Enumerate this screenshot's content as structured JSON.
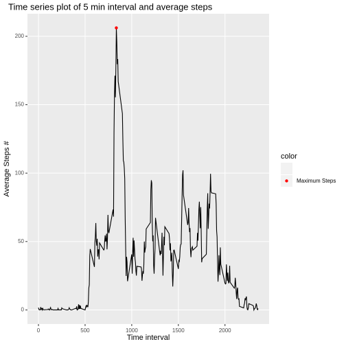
{
  "chart_data": {
    "type": "line",
    "title": "Time series plot of 5 min interval and average steps",
    "x_label": "Time interval",
    "y_label": "Average Steps #",
    "legend_title": "color",
    "grid": true,
    "xlim": [
      -118,
      2473
    ],
    "ylim": [
      -10.3,
      216.5
    ],
    "xticks": [
      0,
      500,
      1000,
      1500,
      2000
    ],
    "yticks": [
      0,
      50,
      100,
      150,
      200
    ],
    "x": [
      0,
      5,
      10,
      15,
      20,
      25,
      30,
      35,
      40,
      45,
      50,
      55,
      100,
      105,
      110,
      115,
      120,
      125,
      130,
      135,
      140,
      145,
      150,
      155,
      200,
      205,
      210,
      215,
      220,
      225,
      230,
      235,
      240,
      245,
      250,
      255,
      300,
      305,
      310,
      315,
      320,
      325,
      330,
      335,
      340,
      345,
      350,
      355,
      400,
      405,
      410,
      415,
      420,
      425,
      430,
      435,
      440,
      445,
      450,
      455,
      500,
      505,
      510,
      515,
      520,
      525,
      530,
      535,
      540,
      545,
      550,
      555,
      600,
      605,
      610,
      615,
      620,
      625,
      630,
      635,
      640,
      645,
      650,
      655,
      700,
      705,
      710,
      715,
      720,
      725,
      730,
      735,
      740,
      745,
      750,
      755,
      800,
      805,
      810,
      815,
      820,
      825,
      830,
      835,
      840,
      845,
      850,
      855,
      900,
      905,
      910,
      915,
      920,
      925,
      930,
      935,
      940,
      945,
      950,
      955,
      1000,
      1005,
      1010,
      1015,
      1020,
      1025,
      1030,
      1035,
      1040,
      1045,
      1050,
      1055,
      1100,
      1105,
      1110,
      1115,
      1120,
      1125,
      1130,
      1135,
      1140,
      1145,
      1150,
      1155,
      1200,
      1205,
      1210,
      1215,
      1220,
      1225,
      1230,
      1235,
      1240,
      1245,
      1250,
      1255,
      1300,
      1305,
      1310,
      1315,
      1320,
      1325,
      1330,
      1335,
      1340,
      1345,
      1350,
      1355,
      1400,
      1405,
      1410,
      1415,
      1420,
      1425,
      1430,
      1435,
      1440,
      1445,
      1450,
      1455,
      1500,
      1505,
      1510,
      1515,
      1520,
      1525,
      1530,
      1535,
      1540,
      1545,
      1550,
      1555,
      1600,
      1605,
      1610,
      1615,
      1620,
      1625,
      1630,
      1635,
      1640,
      1645,
      1650,
      1655,
      1700,
      1705,
      1710,
      1715,
      1720,
      1725,
      1730,
      1735,
      1740,
      1745,
      1750,
      1755,
      1800,
      1805,
      1810,
      1815,
      1820,
      1825,
      1830,
      1835,
      1840,
      1845,
      1850,
      1855,
      1900,
      1905,
      1910,
      1915,
      1920,
      1925,
      1930,
      1935,
      1940,
      1945,
      1950,
      1955,
      2000,
      2005,
      2010,
      2015,
      2020,
      2025,
      2030,
      2035,
      2040,
      2045,
      2050,
      2055,
      2100,
      2105,
      2110,
      2115,
      2120,
      2125,
      2130,
      2135,
      2140,
      2145,
      2150,
      2155,
      2200,
      2205,
      2210,
      2215,
      2220,
      2225,
      2230,
      2235,
      2240,
      2245,
      2250,
      2255,
      2300,
      2305,
      2310,
      2315,
      2320,
      2325,
      2330,
      2335,
      2340,
      2345,
      2350,
      2355
    ],
    "series": [
      {
        "color": "#000000",
        "values": [
          1.7,
          0.3,
          0.1,
          0.2,
          0.1,
          2.1,
          0.5,
          0.9,
          0,
          1.5,
          0.3,
          0.1,
          0.3,
          0.7,
          0.2,
          0.3,
          0,
          1.1,
          1.8,
          0.2,
          0.2,
          0.4,
          0.3,
          0,
          0,
          0,
          1.1,
          0,
          0,
          0.1,
          0,
          0.2,
          0,
          0,
          1.5,
          0.9,
          0,
          0,
          0,
          0,
          0.2,
          0.6,
          1.6,
          0.6,
          0.5,
          0.1,
          0,
          0,
          1.2,
          0.9,
          2.6,
          0,
          0.3,
          0.4,
          4.1,
          0.7,
          3.5,
          0.8,
          3.1,
          1.1,
          0,
          1.6,
          3,
          2.2,
          3.3,
          3,
          2.1,
          6.1,
          16,
          18.3,
          39.5,
          44.5,
          31.5,
          49.3,
          53.8,
          63.5,
          50,
          47,
          52,
          39,
          44,
          44,
          37,
          49,
          43.8,
          44.4,
          50.5,
          54.5,
          49.9,
          51,
          55.7,
          44.3,
          52.3,
          69.5,
          57.8,
          56.2,
          73.4,
          68.2,
          129.4,
          157.5,
          171.2,
          155.4,
          177.3,
          206.17,
          195.9,
          179.6,
          183.4,
          167,
          143.5,
          124,
          109.1,
          108.1,
          103.7,
          95.9,
          66.2,
          45.2,
          24.8,
          38.8,
          35,
          21,
          40.6,
          26.5,
          42.4,
          52.7,
          38.9,
          50.8,
          44.3,
          37.4,
          34.7,
          28.3,
          25.1,
          31.9,
          31.4,
          29.7,
          21.3,
          25.5,
          28.4,
          26.5,
          33.4,
          50,
          42,
          44.6,
          46,
          59.2,
          63.9,
          87.7,
          94.8,
          92.8,
          63.4,
          50.2,
          54.5,
          32.4,
          26.5,
          37.7,
          45,
          67.3,
          42.3,
          39.9,
          43.3,
          40.9,
          46.2,
          56.4,
          42.8,
          25.1,
          39.9,
          53.5,
          47.3,
          60.8,
          55.8,
          51.9,
          43.6,
          48.7,
          35.5,
          37.5,
          41.8,
          27.5,
          17.1,
          26.1,
          43.6,
          43.8,
          30,
          36.1,
          35.5,
          38.8,
          45.9,
          47.8,
          48.1,
          65.3,
          82.9,
          98.7,
          102.1,
          84,
          62.1,
          64.1,
          74.5,
          63.2,
          56.9,
          59.8,
          43.9,
          38.6,
          44.7,
          45.5,
          46.2,
          43.7,
          46.6,
          56.3,
          50.7,
          61.2,
          73.4,
          79.1,
          68.9,
          59.7,
          75.1,
          56.5,
          34.8,
          37.5,
          40.7,
          58,
          74.7,
          85.3,
          59.3,
          67.8,
          77.7,
          74.2,
          85.3,
          99.5,
          86.6,
          85.6,
          84.9,
          77.8,
          58,
          53.4,
          36.3,
          20.7,
          27.4,
          40,
          30.2,
          25.5,
          45.7,
          33.5,
          19.6,
          19,
          19.3,
          33.3,
          26.8,
          21.2,
          27.3,
          21.3,
          19.5,
          21.3,
          32.3,
          20.2,
          15.9,
          17.2,
          23.5,
          19.2,
          12.5,
          8,
          14.7,
          16.3,
          8.7,
          7.8,
          8.1,
          2.6,
          1.5,
          3.7,
          4.8,
          8.5,
          7.1,
          8.7,
          9.8,
          2.2,
          0.3,
          0.1,
          1.6,
          4.6,
          3.3,
          2.8,
          0,
          0.8,
          1,
          1.6,
          2.6,
          4.7,
          3.3,
          0.6,
          0.2,
          1.1
        ]
      }
    ],
    "points": [
      {
        "name": "Maximum Steps",
        "color": "#ff0000",
        "x": [
          835
        ],
        "values": [
          206.17
        ]
      }
    ]
  }
}
